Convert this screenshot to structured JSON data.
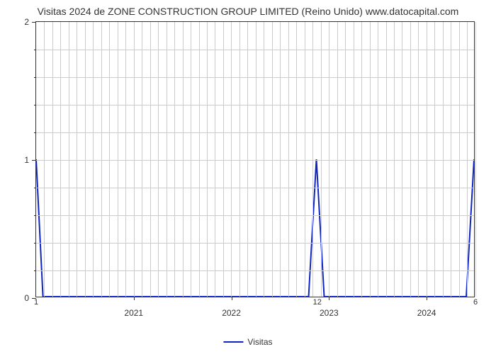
{
  "chart": {
    "type": "line",
    "title": "Visitas 2024 de ZONE CONSTRUCTION GROUP LIMITED (Reino Unido) www.datocapital.com",
    "title_fontsize": 14,
    "title_color": "#333333",
    "background_color": "#ffffff",
    "plot_border_color": "#333333",
    "grid_color": "#cccccc",
    "line_color": "#1024c4",
    "line_width": 2,
    "y_axis": {
      "min": 0,
      "max": 2,
      "major_ticks": [
        0,
        1,
        2
      ],
      "minor_tick_count_between": 4
    },
    "x_axis": {
      "domain_min": 2020.0,
      "domain_max": 2024.5,
      "year_labels": [
        {
          "value": 2021,
          "label": "2021"
        },
        {
          "value": 2022,
          "label": "2022"
        },
        {
          "value": 2023,
          "label": "2023"
        },
        {
          "value": 2024,
          "label": "2024"
        }
      ],
      "corner_labels": [
        {
          "value": 2020.0,
          "label": "1"
        },
        {
          "value": 2022.88,
          "label": "12"
        },
        {
          "value": 2024.5,
          "label": "6"
        }
      ],
      "month_grid_step": 0.0833
    },
    "series": {
      "name": "Visitas",
      "points": [
        {
          "x": 2020.0,
          "y": 1.0
        },
        {
          "x": 2020.07,
          "y": 0.0
        },
        {
          "x": 2022.8,
          "y": 0.0
        },
        {
          "x": 2022.88,
          "y": 1.0
        },
        {
          "x": 2022.96,
          "y": 0.0
        },
        {
          "x": 2024.42,
          "y": 0.0
        },
        {
          "x": 2024.5,
          "y": 1.0
        }
      ]
    },
    "legend": {
      "label": "Visitas",
      "swatch_color": "#1024c4"
    }
  }
}
